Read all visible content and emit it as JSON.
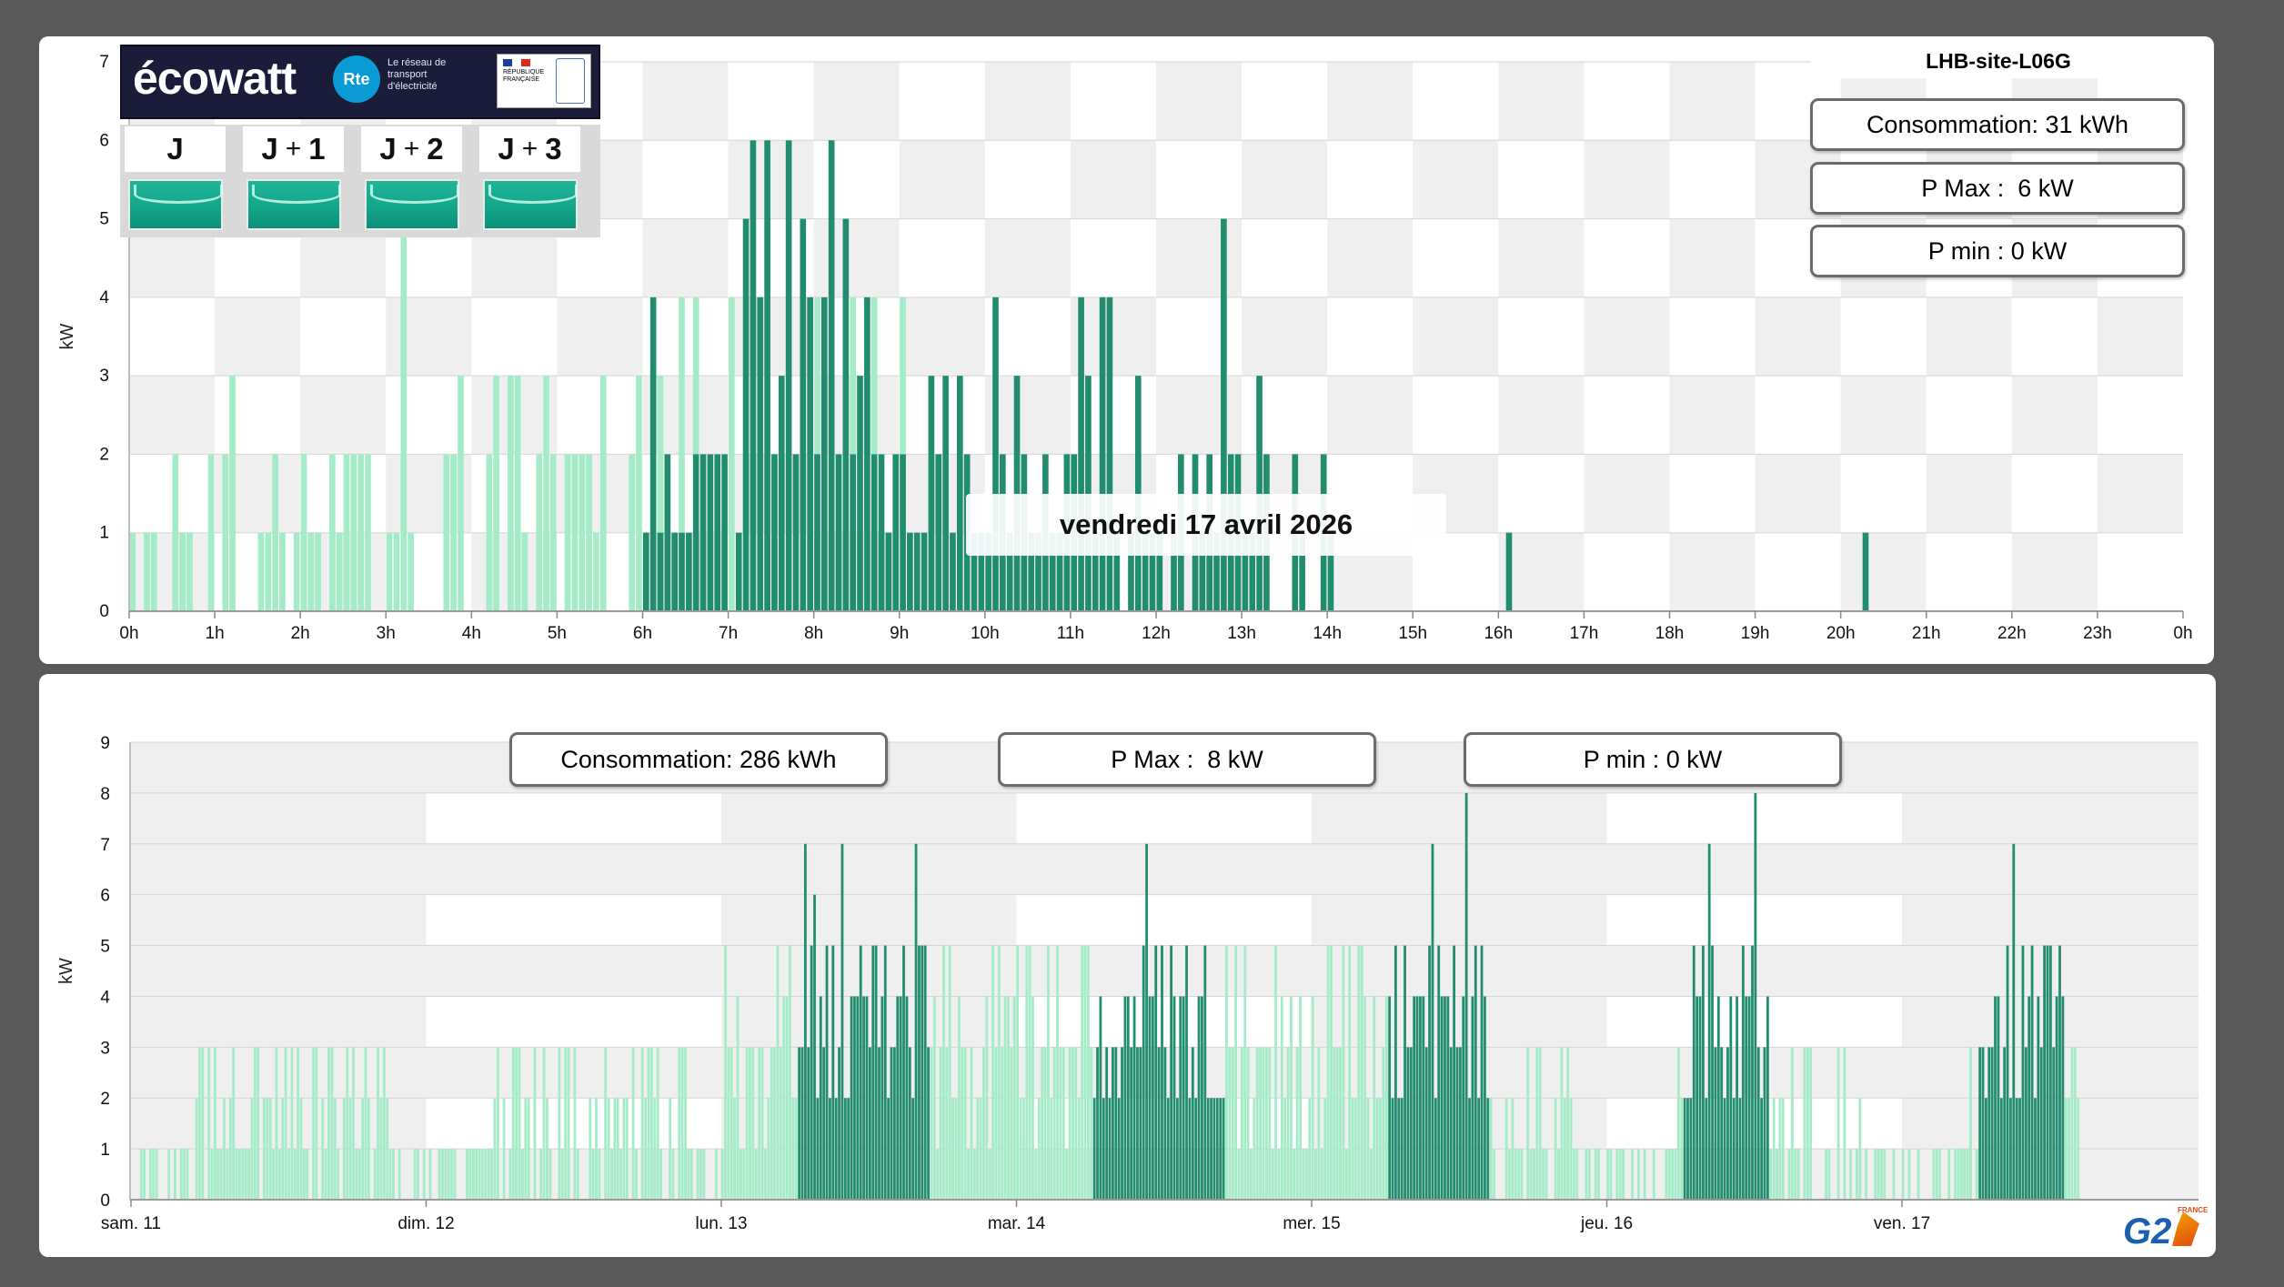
{
  "top_panel": {
    "site_name": "LHB-site-L06G",
    "stats": {
      "consumption": "Consommation: 31 kWh",
      "pmax": "P Max :  6 kW",
      "pmin": "P min : 0 kW"
    },
    "tooltip": "vendredi 17 avril 2026",
    "ecowatt": {
      "brand": "écowatt",
      "rte_badge": "Rte",
      "rte_caption": "Le réseau de transport d'électricité",
      "rf_caption": "RÉPUBLIQUE FRANÇAISE",
      "days": [
        {
          "label": "J",
          "plus": ""
        },
        {
          "label": "J",
          "plus": "+",
          "num": "1"
        },
        {
          "label": "J",
          "plus": "+",
          "num": "2"
        },
        {
          "label": "J",
          "plus": "+",
          "num": "3"
        }
      ],
      "signal_color": "#13a88c"
    }
  },
  "bottom_panel": {
    "stats": {
      "consumption": "Consommation: 286 kWh",
      "pmax": "P Max :  8 kW",
      "pmin": "P min : 0 kW"
    }
  },
  "colors": {
    "off_peak": "#a4ebc8",
    "peak": "#218d6e",
    "band_grey": "#efefef",
    "band_white": "#ffffff"
  },
  "logo": {
    "text": "G2",
    "badge": "FRANCE"
  },
  "chart_data": [
    {
      "type": "bar",
      "ylabel": "kW",
      "ylim": [
        0,
        7
      ],
      "yticks": [
        0,
        1,
        2,
        3,
        4,
        5,
        6,
        7
      ],
      "xticks": [
        "0h",
        "1h",
        "2h",
        "3h",
        "4h",
        "5h",
        "6h",
        "7h",
        "8h",
        "9h",
        "10h",
        "11h",
        "12h",
        "13h",
        "14h",
        "15h",
        "16h",
        "17h",
        "18h",
        "19h",
        "20h",
        "21h",
        "22h",
        "23h",
        "0h"
      ],
      "x_unit": "hour",
      "bar_step_hours": 0.0833,
      "series": [
        {
          "period": "off-peak",
          "color": "#a4ebc8",
          "start_hour": 0,
          "values": [
            1,
            0,
            1,
            1,
            0,
            0,
            2,
            1,
            1,
            0,
            0,
            2,
            0,
            2,
            3,
            0,
            0,
            0,
            1,
            1,
            2,
            1,
            0,
            1,
            2,
            1,
            1,
            0,
            2,
            1,
            2,
            2,
            2,
            2,
            0,
            0,
            1,
            1,
            5,
            1,
            0,
            0,
            0,
            0,
            2,
            2,
            3,
            0,
            0,
            0,
            2,
            3,
            0,
            3,
            3,
            1,
            0,
            2,
            3,
            2,
            0,
            2,
            2,
            2,
            2,
            1,
            3,
            0,
            0,
            0,
            2,
            3,
            0,
            3,
            3,
            1,
            0,
            4,
            1,
            4,
            2,
            0,
            1,
            1,
            4,
            1,
            2,
            4,
            0,
            1,
            2,
            2,
            0,
            0,
            4,
            1,
            4,
            1,
            2,
            2,
            0,
            4,
            1,
            1,
            4,
            1,
            1,
            2,
            4,
            1,
            0,
            0,
            2,
            2,
            1
          ]
        },
        {
          "period": "peak",
          "color": "#218d6e",
          "start_hour": 6,
          "values": [
            1,
            4,
            1,
            2,
            1,
            1,
            1,
            2,
            2,
            2,
            2,
            2,
            0,
            1,
            5,
            6,
            4,
            6,
            2,
            3,
            6,
            2,
            5,
            4,
            2,
            4,
            6,
            2,
            5,
            2,
            3,
            4,
            2,
            2,
            1,
            2,
            2,
            1,
            1,
            1,
            3,
            2,
            3,
            1,
            3,
            2,
            1,
            1,
            1,
            4,
            2,
            1,
            3,
            2,
            1,
            1,
            2,
            1,
            1,
            2,
            2,
            4,
            3,
            1,
            4,
            4,
            1,
            0,
            1,
            3,
            1,
            1,
            1,
            0,
            1,
            2,
            0,
            2,
            1,
            2,
            1,
            5,
            2,
            2,
            1,
            1,
            3,
            2,
            0,
            0,
            0,
            2,
            1,
            0,
            0,
            2,
            1,
            0,
            0,
            0,
            0,
            0,
            0,
            0,
            0,
            0,
            0,
            0,
            0,
            0,
            0,
            0,
            0,
            0,
            0,
            0,
            0,
            0,
            0,
            0,
            0,
            1,
            0,
            0,
            0,
            0,
            0,
            0,
            0,
            0,
            0,
            0,
            0,
            0,
            0,
            0,
            0,
            0,
            0,
            0,
            0,
            0,
            0,
            0,
            0,
            0,
            0,
            0,
            0,
            0,
            0,
            0,
            0,
            0,
            0,
            0,
            0,
            0,
            0,
            0,
            0,
            0,
            0,
            0,
            0,
            0,
            0,
            0,
            0,
            0,
            0,
            1
          ]
        }
      ]
    },
    {
      "type": "bar",
      "ylabel": "kW",
      "ylim": [
        0,
        9
      ],
      "yticks": [
        0,
        1,
        2,
        3,
        4,
        5,
        6,
        7,
        8,
        9
      ],
      "xticks": [
        "sam. 11",
        "dim. 12",
        "lun. 13",
        "mar. 14",
        "mer. 15",
        "jeu. 16",
        "ven. 17"
      ],
      "x_unit": "day",
      "peak_windows_days": [
        [
          2.25,
          2.7
        ],
        [
          3.25,
          3.7
        ],
        [
          4.25,
          4.6
        ],
        [
          5.25,
          5.55
        ],
        [
          6.25,
          6.55
        ]
      ],
      "peak_maxima_kw": [
        8,
        8,
        7,
        7,
        7,
        6
      ],
      "typical_off_peak_kw": [
        1,
        2,
        3
      ],
      "typical_peak_kw": [
        2,
        3,
        4,
        5
      ],
      "data_end_day": 6.6
    }
  ]
}
